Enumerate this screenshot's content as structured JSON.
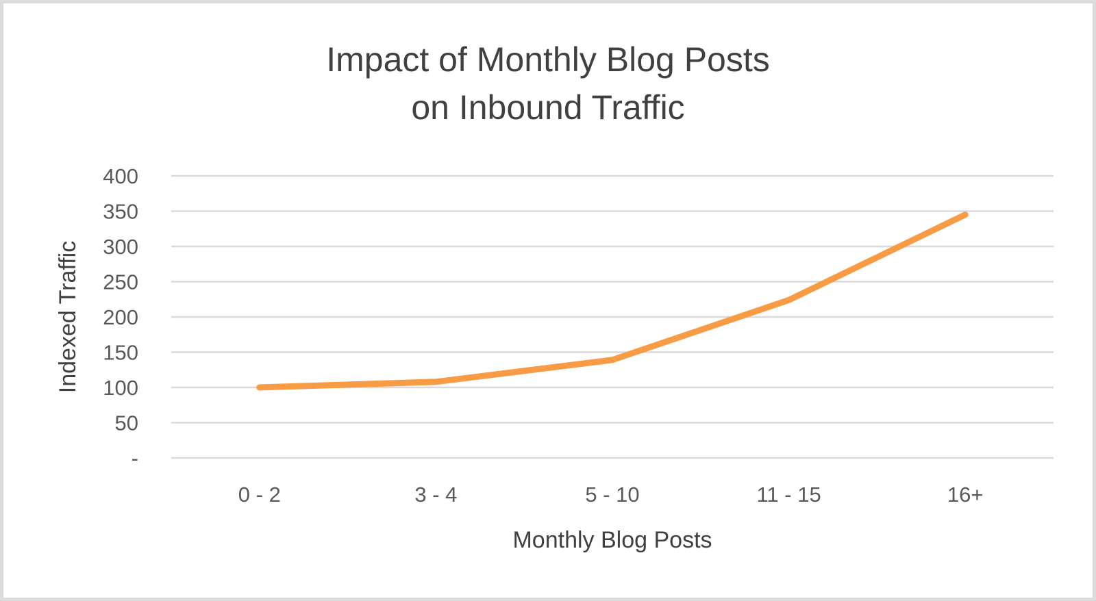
{
  "chart": {
    "title_line1": "Impact of Monthly Blog Posts",
    "title_line2": "on Inbound Traffic",
    "xlabel": "Monthly Blog Posts",
    "ylabel": "Indexed Traffic",
    "y_ticks": [
      "-",
      "50",
      "100",
      "150",
      "200",
      "250",
      "300",
      "350",
      "400"
    ],
    "x_ticks": [
      "0 - 2",
      "3 - 4",
      "5 - 10",
      "11 - 15",
      "16+"
    ],
    "line_color": "#F79B45",
    "grid_color": "#D9D9D9"
  },
  "chart_data": {
    "type": "line",
    "title": "Impact of Monthly Blog Posts on Inbound Traffic",
    "xlabel": "Monthly Blog Posts",
    "ylabel": "Indexed Traffic",
    "categories": [
      "0 - 2",
      "3 - 4",
      "5 - 10",
      "11 - 15",
      "16+"
    ],
    "series": [
      {
        "name": "Indexed Traffic",
        "values": [
          100,
          108,
          139,
          224,
          345
        ],
        "color": "#F79B45"
      }
    ],
    "ylim": [
      0,
      400
    ],
    "y_tick_step": 50,
    "y_tick_labels": [
      "-",
      "50",
      "100",
      "150",
      "200",
      "250",
      "300",
      "350",
      "400"
    ],
    "grid": "horizontal",
    "legend": "none"
  }
}
